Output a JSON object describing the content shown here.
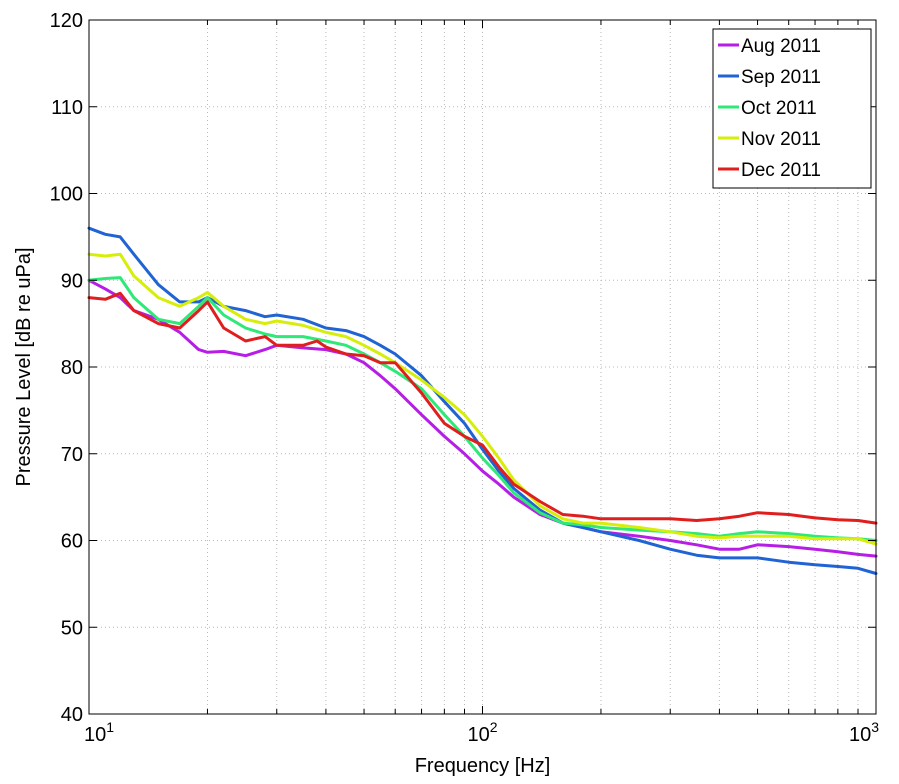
{
  "chart_data": {
    "type": "line",
    "title": "",
    "xlabel": "Frequency [Hz]",
    "ylabel": "Pressure Level [dB re uPa]",
    "xscale": "log",
    "xlim": [
      10,
      1000
    ],
    "ylim": [
      40,
      120
    ],
    "xticks": [
      {
        "value": 10,
        "base": "10",
        "exp": "1"
      },
      {
        "value": 100,
        "base": "10",
        "exp": "2"
      },
      {
        "value": 1000,
        "base": "10",
        "exp": "3"
      }
    ],
    "yticks": [
      "40",
      "50",
      "60",
      "70",
      "80",
      "90",
      "100",
      "110",
      "120"
    ],
    "grid": true,
    "legend_position": "top-right",
    "series": [
      {
        "name": "Aug 2011",
        "color": "#b61ee6",
        "x": [
          10,
          11,
          12,
          13,
          15,
          17,
          19,
          20,
          22,
          25,
          28,
          30,
          35,
          40,
          45,
          50,
          55,
          60,
          70,
          80,
          90,
          100,
          110,
          120,
          140,
          160,
          180,
          200,
          250,
          300,
          350,
          400,
          450,
          500,
          600,
          700,
          800,
          900,
          1000
        ],
        "y": [
          90,
          89,
          88,
          86.5,
          85.5,
          84,
          82,
          81.7,
          81.8,
          81.3,
          82,
          82.5,
          82.2,
          82,
          81.5,
          80.5,
          79,
          77.5,
          74.5,
          72,
          70,
          68,
          66.5,
          65,
          63,
          62,
          61.5,
          61,
          60.5,
          60,
          59.5,
          59,
          59,
          59.5,
          59.3,
          59,
          58.7,
          58.4,
          58.2
        ]
      },
      {
        "name": "Sep 2011",
        "color": "#1f63d4",
        "x": [
          10,
          11,
          12,
          13,
          15,
          17,
          19,
          20,
          22,
          25,
          28,
          30,
          35,
          40,
          45,
          50,
          55,
          60,
          70,
          80,
          90,
          100,
          110,
          120,
          140,
          160,
          180,
          200,
          250,
          300,
          350,
          400,
          450,
          500,
          600,
          700,
          800,
          900,
          1000
        ],
        "y": [
          96,
          95.3,
          95,
          93,
          89.5,
          87.5,
          87.5,
          88,
          87,
          86.5,
          85.8,
          86,
          85.5,
          84.5,
          84.2,
          83.5,
          82.5,
          81.5,
          79,
          76,
          73.5,
          70.5,
          68,
          66,
          63.5,
          62,
          61.5,
          61,
          60,
          59,
          58.3,
          58,
          58,
          58,
          57.5,
          57.2,
          57,
          56.8,
          56.2
        ]
      },
      {
        "name": "Oct 2011",
        "color": "#2ee877",
        "x": [
          10,
          11,
          12,
          13,
          15,
          17,
          19,
          20,
          22,
          25,
          28,
          30,
          35,
          40,
          45,
          50,
          55,
          60,
          70,
          80,
          90,
          100,
          110,
          120,
          140,
          160,
          180,
          200,
          250,
          300,
          350,
          400,
          450,
          500,
          600,
          700,
          800,
          900,
          1000
        ],
        "y": [
          90,
          90.2,
          90.3,
          88,
          85.5,
          85,
          87,
          88,
          86,
          84.5,
          83.8,
          83.5,
          83.5,
          83,
          82.5,
          81.5,
          80.5,
          79.5,
          77.5,
          74.5,
          72,
          69.5,
          67.5,
          65.5,
          63.2,
          62,
          61.8,
          61.5,
          61.2,
          61,
          60.8,
          60.5,
          60.8,
          61,
          60.8,
          60.5,
          60.3,
          60.2,
          60
        ]
      },
      {
        "name": "Nov 2011",
        "color": "#d6ee0a",
        "x": [
          10,
          11,
          12,
          13,
          15,
          17,
          19,
          20,
          22,
          25,
          28,
          30,
          35,
          40,
          45,
          50,
          55,
          60,
          70,
          80,
          90,
          100,
          110,
          120,
          140,
          160,
          180,
          200,
          250,
          300,
          350,
          400,
          450,
          500,
          600,
          700,
          800,
          900,
          1000
        ],
        "y": [
          93,
          92.8,
          93,
          90.5,
          88,
          87,
          88,
          88.6,
          87,
          85.5,
          85,
          85.3,
          84.8,
          84,
          83.5,
          82.5,
          81.5,
          80.5,
          78.5,
          76.5,
          74.5,
          72,
          69.5,
          67,
          64,
          62.5,
          62,
          62,
          61.5,
          61,
          60.5,
          60.3,
          60.5,
          60.5,
          60.5,
          60.2,
          60.2,
          60.2,
          59.6
        ]
      },
      {
        "name": "Dec 2011",
        "color": "#e01e1e",
        "x": [
          10,
          11,
          12,
          13,
          15,
          17,
          19,
          20,
          22,
          25,
          28,
          30,
          35,
          38,
          40,
          45,
          50,
          55,
          60,
          70,
          80,
          90,
          100,
          110,
          120,
          140,
          160,
          180,
          200,
          250,
          300,
          350,
          400,
          450,
          500,
          600,
          700,
          800,
          900,
          1000
        ],
        "y": [
          88,
          87.8,
          88.5,
          86.5,
          85,
          84.5,
          86.5,
          87.5,
          84.5,
          83,
          83.5,
          82.5,
          82.5,
          83,
          82.3,
          81.5,
          81.3,
          80.5,
          80.5,
          77,
          73.5,
          72,
          71,
          68.5,
          66.5,
          64.5,
          63,
          62.8,
          62.5,
          62.5,
          62.5,
          62.3,
          62.5,
          62.8,
          63.2,
          63,
          62.6,
          62.4,
          62.3,
          62
        ]
      }
    ]
  }
}
